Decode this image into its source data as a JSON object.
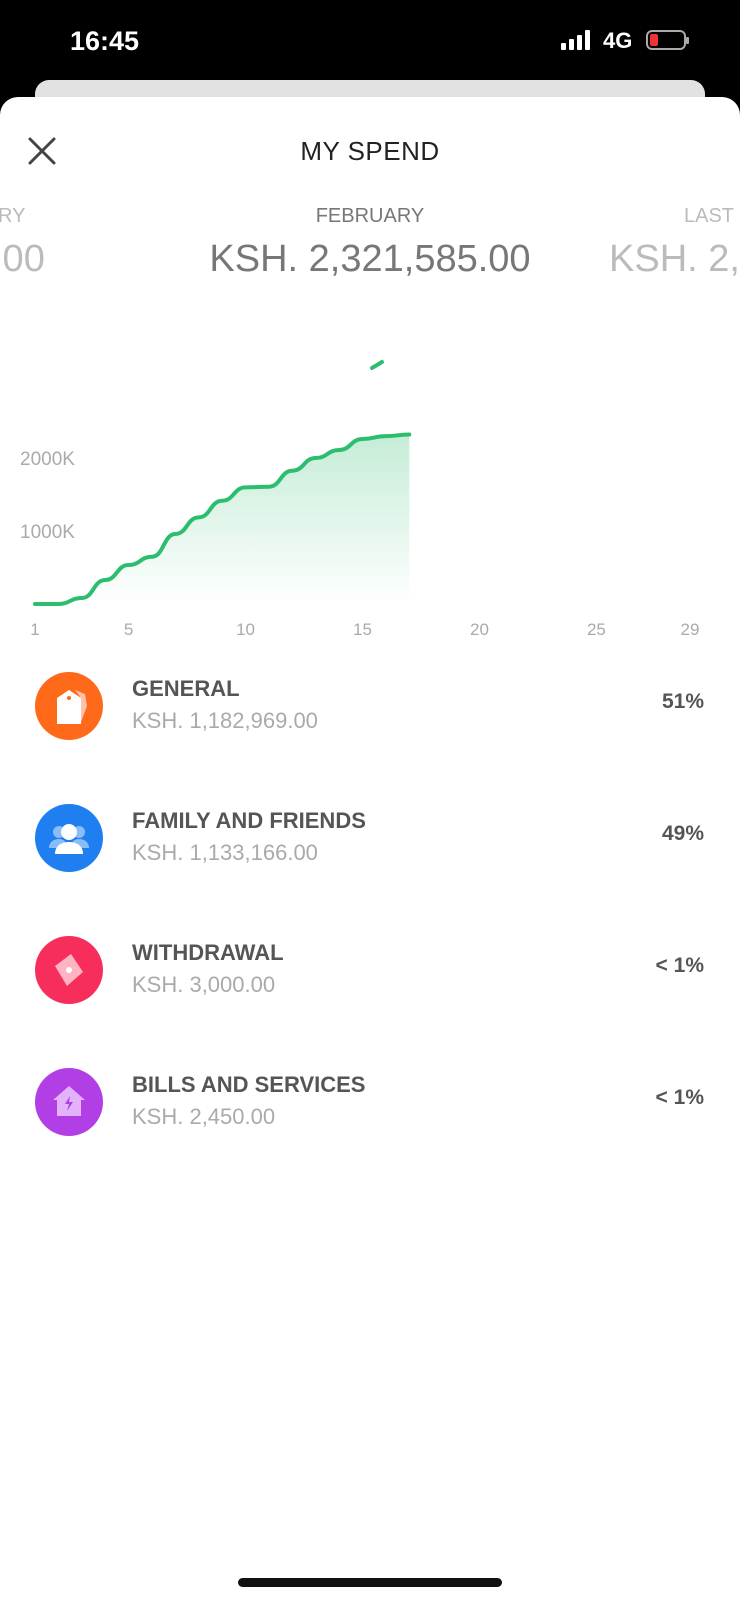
{
  "status_bar": {
    "time": "16:45",
    "network": "4G",
    "battery_color": "#e53935"
  },
  "header": {
    "title": "MY SPEND",
    "close_icon": "close-icon"
  },
  "months": [
    {
      "label": "RY",
      "amount": ".00"
    },
    {
      "label": "FEBRUARY",
      "amount": "KSH. 2,321,585.00"
    },
    {
      "label": "LAST",
      "amount": "KSH. 2,"
    }
  ],
  "chart_data": {
    "type": "area",
    "x": [
      1,
      2,
      3,
      4,
      5,
      6,
      7,
      8,
      9,
      10,
      11,
      12,
      13,
      14,
      15,
      16,
      17
    ],
    "values": [
      0,
      0,
      82,
      329,
      534,
      648,
      959,
      1187,
      1415,
      1598,
      1607,
      1826,
      2000,
      2110,
      2260,
      2300,
      2322
    ],
    "xlim": [
      1,
      29
    ],
    "x_ticks": [
      "1",
      "5",
      "10",
      "15",
      "20",
      "25",
      "29"
    ],
    "y_ticks": [
      "1000K",
      "2000K"
    ],
    "y_tick_values": [
      1000,
      2000
    ],
    "ylabel": "",
    "xlabel": "",
    "color": "#2dbd6e"
  },
  "categories": [
    {
      "name": "GENERAL",
      "amount": "KSH. 1,182,969.00",
      "percent": "51%",
      "icon": "tag-icon",
      "color": "#ff6a1a"
    },
    {
      "name": "FAMILY AND FRIENDS",
      "amount": "KSH. 1,133,166.00",
      "percent": "49%",
      "icon": "people-icon",
      "color": "#1f7ff0"
    },
    {
      "name": "WITHDRAWAL",
      "amount": "KSH. 3,000.00",
      "percent": "< 1%",
      "icon": "cash-icon",
      "color": "#f72d5c"
    },
    {
      "name": "BILLS AND SERVICES",
      "amount": "KSH. 2,450.00",
      "percent": "< 1%",
      "icon": "house-bolt-icon",
      "color": "#b23fe6"
    }
  ]
}
